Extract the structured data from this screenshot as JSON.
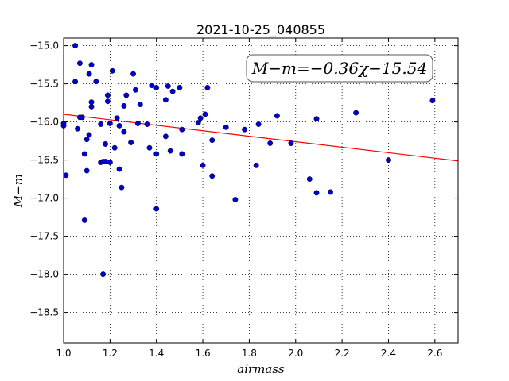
{
  "chart_data": {
    "type": "scatter",
    "title": "2021-10-25_040855",
    "xlabel": "airmass",
    "ylabel": "M−m",
    "xlim": [
      1.0,
      2.7
    ],
    "ylim": [
      -18.9,
      -14.9
    ],
    "ylim_inverted": true,
    "xticks": [
      "1.0",
      "1.2",
      "1.4",
      "1.6",
      "1.8",
      "2.0",
      "2.2",
      "2.4",
      "2.6"
    ],
    "yticks": [
      "−15.0",
      "−15.5",
      "−16.0",
      "−16.5",
      "−17.0",
      "−17.5",
      "−18.0",
      "−18.5"
    ],
    "grid": true,
    "annotation": "M−m=−0.36χ−15.54",
    "fit": {
      "slope": -0.36,
      "intercept": -15.54,
      "color": "#ff0000"
    },
    "point_color": "#0000cc",
    "points": [
      [
        1.0,
        -16.05
      ],
      [
        1.01,
        -16.7
      ],
      [
        1.05,
        -15.0
      ],
      [
        1.05,
        -15.47
      ],
      [
        1.06,
        -16.09
      ],
      [
        1.07,
        -15.23
      ],
      [
        1.07,
        -15.94
      ],
      [
        1.08,
        -15.94
      ],
      [
        1.09,
        -16.42
      ],
      [
        1.09,
        -17.29
      ],
      [
        1.1,
        -16.23
      ],
      [
        1.1,
        -16.64
      ],
      [
        1.11,
        -15.37
      ],
      [
        1.11,
        -16.17
      ],
      [
        1.12,
        -15.25
      ],
      [
        1.12,
        -15.74
      ],
      [
        1.12,
        -15.8
      ],
      [
        1.14,
        -15.47
      ],
      [
        1.16,
        -16.03
      ],
      [
        1.16,
        -16.53
      ],
      [
        1.17,
        -16.52
      ],
      [
        1.17,
        -18.0
      ],
      [
        1.18,
        -16.29
      ],
      [
        1.18,
        -16.52
      ],
      [
        1.19,
        -15.65
      ],
      [
        1.19,
        -15.73
      ],
      [
        1.2,
        -16.53
      ],
      [
        1.2,
        -16.02
      ],
      [
        1.21,
        -15.33
      ],
      [
        1.22,
        -16.34
      ],
      [
        1.23,
        -15.95
      ],
      [
        1.24,
        -16.05
      ],
      [
        1.24,
        -16.62
      ],
      [
        1.25,
        -16.86
      ],
      [
        1.26,
        -15.79
      ],
      [
        1.26,
        -16.13
      ],
      [
        1.27,
        -15.65
      ],
      [
        1.29,
        -16.27
      ],
      [
        1.3,
        -15.37
      ],
      [
        1.31,
        -15.58
      ],
      [
        1.32,
        -16.02
      ],
      [
        1.33,
        -15.77
      ],
      [
        1.36,
        -16.03
      ],
      [
        1.37,
        -16.34
      ],
      [
        1.38,
        -15.52
      ],
      [
        1.4,
        -15.55
      ],
      [
        1.4,
        -16.42
      ],
      [
        1.4,
        -17.14
      ],
      [
        1.44,
        -15.71
      ],
      [
        1.44,
        -16.19
      ],
      [
        1.45,
        -15.53
      ],
      [
        1.46,
        -16.38
      ],
      [
        1.47,
        -15.6
      ],
      [
        1.5,
        -15.55
      ],
      [
        1.51,
        -16.1
      ],
      [
        1.51,
        -16.42
      ],
      [
        1.58,
        -16.01
      ],
      [
        1.59,
        -15.95
      ],
      [
        1.6,
        -16.57
      ],
      [
        1.61,
        -15.9
      ],
      [
        1.62,
        -15.55
      ],
      [
        1.64,
        -16.24
      ],
      [
        1.64,
        -16.71
      ],
      [
        1.7,
        -16.07
      ],
      [
        1.74,
        -17.02
      ],
      [
        1.78,
        -16.1
      ],
      [
        1.83,
        -16.57
      ],
      [
        1.84,
        -16.03
      ],
      [
        1.89,
        -16.28
      ],
      [
        1.92,
        -15.92
      ],
      [
        1.98,
        -16.28
      ],
      [
        2.06,
        -16.75
      ],
      [
        2.09,
        -15.96
      ],
      [
        2.09,
        -16.93
      ],
      [
        2.15,
        -16.92
      ],
      [
        2.26,
        -15.88
      ],
      [
        2.4,
        -16.5
      ],
      [
        2.59,
        -15.72
      ],
      [
        1.0,
        -16.02
      ]
    ]
  }
}
